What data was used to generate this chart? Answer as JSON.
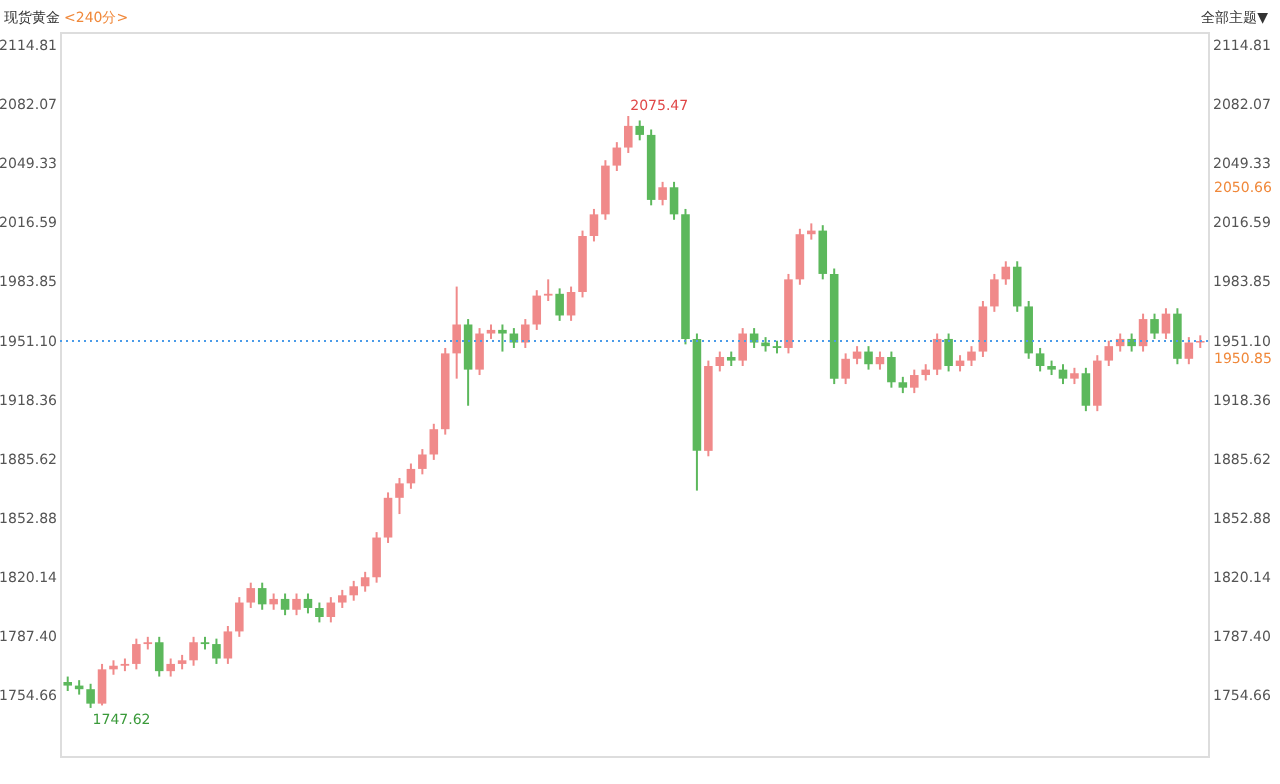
{
  "chart_data": {
    "type": "candlestick",
    "title": "现货黄金",
    "subtitle": "<240分>",
    "categories": [
      null,
      null,
      null,
      null,
      null,
      null,
      null,
      null,
      null,
      null,
      null,
      null,
      null,
      null,
      null,
      null,
      null,
      null,
      null,
      null,
      null,
      null,
      null,
      null,
      null,
      null,
      null,
      null,
      null,
      null,
      null,
      null,
      null,
      null,
      null,
      null,
      null,
      null,
      null,
      null,
      null,
      null,
      null,
      null,
      null,
      null,
      null,
      null,
      null,
      null,
      null,
      null,
      null,
      null,
      null,
      null,
      null,
      null,
      null,
      null,
      null,
      null,
      null,
      null,
      null,
      null,
      null,
      null,
      null,
      null,
      null,
      null,
      null,
      null,
      null,
      null,
      null,
      null,
      null,
      null,
      null,
      null,
      null,
      null,
      null,
      null,
      null,
      null,
      null,
      null,
      null,
      null,
      null,
      null,
      null,
      null,
      null,
      null,
      null,
      null
    ],
    "ohlc": [
      [
        1762,
        1765,
        1757,
        1760
      ],
      [
        1760,
        1763,
        1755,
        1758
      ],
      [
        1758,
        1761,
        1747.62,
        1750
      ],
      [
        1750,
        1772,
        1749,
        1769
      ],
      [
        1769,
        1774,
        1766,
        1771
      ],
      [
        1771,
        1775,
        1768,
        1772
      ],
      [
        1772,
        1786,
        1769,
        1783
      ],
      [
        1783,
        1787,
        1780,
        1784
      ],
      [
        1784,
        1787,
        1765,
        1768
      ],
      [
        1768,
        1775,
        1765,
        1772
      ],
      [
        1772,
        1777,
        1769,
        1774
      ],
      [
        1774,
        1787,
        1771,
        1784
      ],
      [
        1784,
        1787,
        1780,
        1783
      ],
      [
        1783,
        1786,
        1772,
        1775
      ],
      [
        1775,
        1793,
        1772,
        1790
      ],
      [
        1790,
        1809,
        1787,
        1806
      ],
      [
        1806,
        1817,
        1803,
        1814
      ],
      [
        1814,
        1817,
        1802,
        1805
      ],
      [
        1805,
        1811,
        1802,
        1808
      ],
      [
        1808,
        1811,
        1799,
        1802
      ],
      [
        1802,
        1811,
        1799,
        1808
      ],
      [
        1808,
        1811,
        1800,
        1803
      ],
      [
        1803,
        1806,
        1795,
        1798
      ],
      [
        1798,
        1809,
        1795,
        1806
      ],
      [
        1806,
        1813,
        1803,
        1810
      ],
      [
        1810,
        1818,
        1807,
        1815
      ],
      [
        1815,
        1823,
        1812,
        1820
      ],
      [
        1820,
        1845,
        1817,
        1842
      ],
      [
        1842,
        1867,
        1839,
        1864
      ],
      [
        1864,
        1875,
        1855,
        1872
      ],
      [
        1872,
        1883,
        1869,
        1880
      ],
      [
        1880,
        1891,
        1877,
        1888
      ],
      [
        1888,
        1905,
        1885,
        1902
      ],
      [
        1902,
        1947,
        1899,
        1944
      ],
      [
        1944,
        1981,
        1930,
        1960
      ],
      [
        1960,
        1963,
        1915,
        1935
      ],
      [
        1935,
        1958,
        1932,
        1955
      ],
      [
        1955,
        1960,
        1952,
        1957
      ],
      [
        1957,
        1960,
        1945,
        1955
      ],
      [
        1955,
        1958,
        1947,
        1950
      ],
      [
        1950,
        1963,
        1947,
        1960
      ],
      [
        1960,
        1979,
        1957,
        1976
      ],
      [
        1976,
        1985,
        1973,
        1977
      ],
      [
        1977,
        1980,
        1962,
        1965
      ],
      [
        1965,
        1981,
        1962,
        1978
      ],
      [
        1978,
        2012,
        1975,
        2009
      ],
      [
        2009,
        2024,
        2006,
        2021
      ],
      [
        2021,
        2051,
        2018,
        2048
      ],
      [
        2048,
        2061,
        2045,
        2058
      ],
      [
        2058,
        2075.47,
        2055,
        2070
      ],
      [
        2070,
        2073,
        2062,
        2065
      ],
      [
        2065,
        2068,
        2026,
        2029
      ],
      [
        2029,
        2039,
        2026,
        2036
      ],
      [
        2036,
        2039,
        2018,
        2021
      ],
      [
        2021,
        2024,
        1949,
        1952
      ],
      [
        1952,
        1955,
        1868,
        1890
      ],
      [
        1890,
        1940,
        1887,
        1937
      ],
      [
        1937,
        1945,
        1934,
        1942
      ],
      [
        1942,
        1945,
        1937,
        1940
      ],
      [
        1940,
        1958,
        1937,
        1955
      ],
      [
        1955,
        1958,
        1947,
        1950
      ],
      [
        1950,
        1953,
        1945,
        1948
      ],
      [
        1948,
        1951,
        1944,
        1947
      ],
      [
        1947,
        1988,
        1944,
        1985
      ],
      [
        1985,
        2013,
        1982,
        2010
      ],
      [
        2010,
        2016,
        2007,
        2012
      ],
      [
        2012,
        2015,
        1985,
        1988
      ],
      [
        1988,
        1991,
        1927,
        1930
      ],
      [
        1930,
        1944,
        1927,
        1941
      ],
      [
        1941,
        1948,
        1938,
        1945
      ],
      [
        1945,
        1948,
        1935,
        1938
      ],
      [
        1938,
        1945,
        1935,
        1942
      ],
      [
        1942,
        1945,
        1925,
        1928
      ],
      [
        1928,
        1931,
        1922,
        1925
      ],
      [
        1925,
        1935,
        1922,
        1932
      ],
      [
        1932,
        1938,
        1929,
        1935
      ],
      [
        1935,
        1955,
        1932,
        1952
      ],
      [
        1952,
        1955,
        1934,
        1937
      ],
      [
        1937,
        1943,
        1934,
        1940
      ],
      [
        1940,
        1948,
        1937,
        1945
      ],
      [
        1945,
        1973,
        1942,
        1970
      ],
      [
        1970,
        1988,
        1967,
        1985
      ],
      [
        1985,
        1995,
        1982,
        1992
      ],
      [
        1992,
        1995,
        1967,
        1970
      ],
      [
        1970,
        1973,
        1941,
        1944
      ],
      [
        1944,
        1947,
        1934,
        1937
      ],
      [
        1937,
        1940,
        1932,
        1935
      ],
      [
        1935,
        1938,
        1927,
        1930
      ],
      [
        1930,
        1936,
        1927,
        1933
      ],
      [
        1933,
        1936,
        1912,
        1915
      ],
      [
        1915,
        1943,
        1912,
        1940
      ],
      [
        1940,
        1951,
        1937,
        1948
      ],
      [
        1948,
        1955,
        1945,
        1952
      ],
      [
        1952,
        1955,
        1945,
        1948
      ],
      [
        1948,
        1966,
        1945,
        1963
      ],
      [
        1963,
        1966,
        1952,
        1955
      ],
      [
        1955,
        1969,
        1952,
        1966
      ],
      [
        1966,
        1969,
        1938,
        1941
      ],
      [
        1941,
        1953,
        1938,
        1950
      ],
      [
        1950,
        1954,
        1947,
        1950.85
      ]
    ],
    "colors": [
      "#5cb85c",
      "#5cb85c",
      "#5cb85c",
      "#f08a8a",
      "#f08a8a",
      "#f08a8a",
      "#f08a8a",
      "#f08a8a",
      "#5cb85c",
      "#f08a8a",
      "#f08a8a",
      "#f08a8a",
      "#5cb85c",
      "#5cb85c",
      "#f08a8a",
      "#f08a8a",
      "#f08a8a",
      "#5cb85c",
      "#f08a8a",
      "#5cb85c",
      "#f08a8a",
      "#5cb85c",
      "#5cb85c",
      "#f08a8a",
      "#f08a8a",
      "#f08a8a",
      "#f08a8a",
      "#f08a8a",
      "#f08a8a",
      "#f08a8a",
      "#f08a8a",
      "#f08a8a",
      "#f08a8a",
      "#f08a8a",
      "#f08a8a",
      "#5cb85c",
      "#f08a8a",
      "#f08a8a",
      "#5cb85c",
      "#5cb85c",
      "#f08a8a",
      "#f08a8a",
      "#f08a8a",
      "#5cb85c",
      "#f08a8a",
      "#f08a8a",
      "#f08a8a",
      "#f08a8a",
      "#f08a8a",
      "#f08a8a",
      "#5cb85c",
      "#5cb85c",
      "#f08a8a",
      "#5cb85c",
      "#5cb85c",
      "#5cb85c",
      "#f08a8a",
      "#f08a8a",
      "#5cb85c",
      "#f08a8a",
      "#5cb85c",
      "#5cb85c",
      "#5cb85c",
      "#f08a8a",
      "#f08a8a",
      "#f08a8a",
      "#5cb85c",
      "#5cb85c",
      "#f08a8a",
      "#f08a8a",
      "#5cb85c",
      "#f08a8a",
      "#5cb85c",
      "#5cb85c",
      "#f08a8a",
      "#f08a8a",
      "#f08a8a",
      "#5cb85c",
      "#f08a8a",
      "#f08a8a",
      "#f08a8a",
      "#f08a8a",
      "#f08a8a",
      "#5cb85c",
      "#5cb85c",
      "#5cb85c",
      "#5cb85c",
      "#5cb85c",
      "#f08a8a",
      "#5cb85c",
      "#f08a8a",
      "#f08a8a",
      "#f08a8a",
      "#5cb85c",
      "#f08a8a",
      "#5cb85c",
      "#f08a8a",
      "#5cb85c",
      "#f08a8a",
      "#f08a8a"
    ],
    "ylim": [
      1721,
      2122
    ],
    "yticks": [
      1754.66,
      {
        "value": 1787.4,
        "label": "1787.40"
      },
      1820.14,
      1852.88,
      1885.62,
      1918.36,
      {
        "value": 1951.1,
        "label": "1951.10"
      },
      1983.85,
      2016.59,
      2049.33,
      2082.07,
      2114.81
    ],
    "y2lim": [
      1721,
      2122
    ],
    "y2ticks": [
      1754.66,
      {
        "value": 1787.4,
        "label": "1787.40"
      },
      1820.14,
      1852.88,
      1885.62,
      1918.36,
      {
        "value": 1951.1,
        "label": "1951.10"
      },
      1983.85,
      2016.59,
      2049.33,
      2082.07,
      2114.81
    ],
    "tick_labels": "y",
    "grid": false,
    "ref_lines": [
      {
        "axis": "y",
        "value": 1950.85,
        "label": "1950.85",
        "color": "#4a9be8",
        "line_style": "dotted"
      }
    ],
    "annotations": [
      "2075.47",
      "1747.62",
      "2050.66",
      "全部主题▼"
    ]
  }
}
